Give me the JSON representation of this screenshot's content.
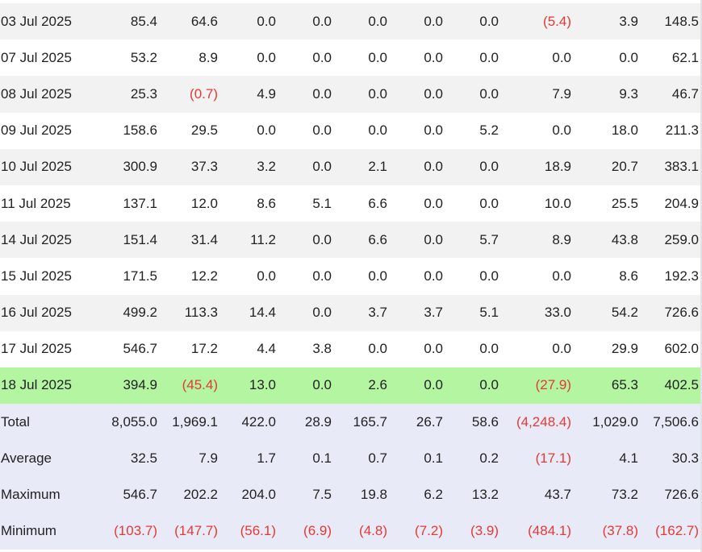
{
  "rows": [
    {
      "date": "03 Jul 2025",
      "values": [
        "85.4",
        "64.6",
        "0.0",
        "0.0",
        "0.0",
        "0.0",
        "0.0",
        "(5.4)",
        "3.9",
        "148.5"
      ]
    },
    {
      "date": "07 Jul 2025",
      "values": [
        "53.2",
        "8.9",
        "0.0",
        "0.0",
        "0.0",
        "0.0",
        "0.0",
        "0.0",
        "0.0",
        "62.1"
      ]
    },
    {
      "date": "08 Jul 2025",
      "values": [
        "25.3",
        "(0.7)",
        "4.9",
        "0.0",
        "0.0",
        "0.0",
        "0.0",
        "7.9",
        "9.3",
        "46.7"
      ]
    },
    {
      "date": "09 Jul 2025",
      "values": [
        "158.6",
        "29.5",
        "0.0",
        "0.0",
        "0.0",
        "0.0",
        "5.2",
        "0.0",
        "18.0",
        "211.3"
      ]
    },
    {
      "date": "10 Jul 2025",
      "values": [
        "300.9",
        "37.3",
        "3.2",
        "0.0",
        "2.1",
        "0.0",
        "0.0",
        "18.9",
        "20.7",
        "383.1"
      ]
    },
    {
      "date": "11 Jul 2025",
      "values": [
        "137.1",
        "12.0",
        "8.6",
        "5.1",
        "6.6",
        "0.0",
        "0.0",
        "10.0",
        "25.5",
        "204.9"
      ]
    },
    {
      "date": "14 Jul 2025",
      "values": [
        "151.4",
        "31.4",
        "11.2",
        "0.0",
        "6.6",
        "0.0",
        "5.7",
        "8.9",
        "43.8",
        "259.0"
      ]
    },
    {
      "date": "15 Jul 2025",
      "values": [
        "171.5",
        "12.2",
        "0.0",
        "0.0",
        "0.0",
        "0.0",
        "0.0",
        "0.0",
        "8.6",
        "192.3"
      ]
    },
    {
      "date": "16 Jul 2025",
      "values": [
        "499.2",
        "113.3",
        "14.4",
        "0.0",
        "3.7",
        "3.7",
        "5.1",
        "33.0",
        "54.2",
        "726.6"
      ]
    },
    {
      "date": "17 Jul 2025",
      "values": [
        "546.7",
        "17.2",
        "4.4",
        "3.8",
        "0.0",
        "0.0",
        "0.0",
        "0.0",
        "29.9",
        "602.0"
      ]
    },
    {
      "date": "18 Jul 2025",
      "values": [
        "394.9",
        "(45.4)",
        "13.0",
        "0.0",
        "2.6",
        "0.0",
        "0.0",
        "(27.9)",
        "65.3",
        "402.5"
      ],
      "highlighted": true
    }
  ],
  "summary": [
    {
      "label": "Total",
      "values": [
        "8,055.0",
        "1,969.1",
        "422.0",
        "28.9",
        "165.7",
        "26.7",
        "58.6",
        "(4,248.4)",
        "1,029.0",
        "7,506.6"
      ]
    },
    {
      "label": "Average",
      "values": [
        "32.5",
        "7.9",
        "1.7",
        "0.1",
        "0.7",
        "0.1",
        "0.2",
        "(17.1)",
        "4.1",
        "30.3"
      ]
    },
    {
      "label": "Maximum",
      "values": [
        "546.7",
        "202.2",
        "204.0",
        "7.5",
        "19.8",
        "6.2",
        "13.2",
        "43.7",
        "73.2",
        "726.6"
      ]
    },
    {
      "label": "Minimum",
      "values": [
        "(103.7)",
        "(147.7)",
        "(56.1)",
        "(6.9)",
        "(4.8)",
        "(7.2)",
        "(3.9)",
        "(484.1)",
        "(37.8)",
        "(162.7)"
      ]
    }
  ],
  "colors": {
    "negative": "#e53935",
    "row_alt": "#f2f2f2",
    "row_highlight": "#b3f5a0",
    "summary_bg": "#e8ebf7"
  }
}
